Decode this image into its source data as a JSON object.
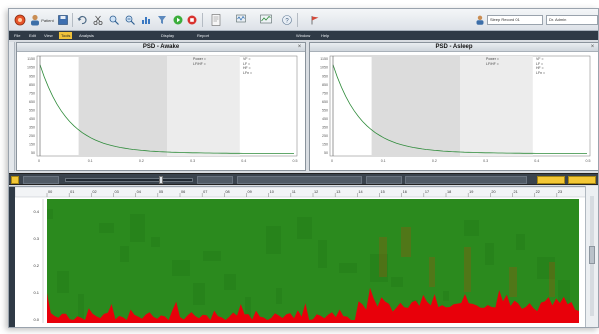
{
  "toolbar": {
    "buttons": [
      {
        "name": "record-icon",
        "label": ""
      },
      {
        "name": "user-icon",
        "label": "Patient"
      },
      {
        "name": "save-icon",
        "label": ""
      },
      {
        "name": "undo-icon",
        "label": ""
      },
      {
        "name": "cut-icon",
        "label": ""
      },
      {
        "name": "zoom-in-icon",
        "label": ""
      },
      {
        "name": "zoom-out-icon",
        "label": ""
      },
      {
        "name": "play-icon",
        "label": ""
      },
      {
        "name": "stop-icon",
        "label": ""
      },
      {
        "name": "report-icon",
        "label": ""
      },
      {
        "name": "montage-icon",
        "label": ""
      },
      {
        "name": "analysis-icon",
        "label": ""
      },
      {
        "name": "help-icon",
        "label": ""
      }
    ],
    "patient_field": "Sleep Record 01",
    "user_field": "Dr. Admin"
  },
  "menu": {
    "items": [
      "File",
      "Edit",
      "View",
      "Tools",
      "Analysis",
      "Display",
      "Report",
      "Window",
      "Help"
    ],
    "active_index": 3
  },
  "psd_panels": [
    {
      "title": "PSD - Awake",
      "stats_left": [
        "Power =",
        "LF/HF ="
      ],
      "stats_right": [
        "VF =",
        "LF =",
        "HF =",
        "LFn ="
      ],
      "colors": {
        "line": "#2e8b3a",
        "bg_band": "#dcdcdc"
      }
    },
    {
      "title": "PSD - Asleep",
      "stats_left": [
        "Power =",
        "LF/HF ="
      ],
      "stats_right": [
        "VF =",
        "LF =",
        "HF =",
        "LFn ="
      ],
      "colors": {
        "line": "#2e8b3a",
        "bg_band": "#dcdcdc"
      }
    }
  ],
  "psd_ticks_y": [
    "1150",
    "1050",
    "950",
    "850",
    "750",
    "650",
    "550",
    "450",
    "350",
    "250",
    "150",
    "50"
  ],
  "psd_ticks_x": [
    "0",
    "0.1",
    "0.2",
    "0.3",
    "0.4",
    "0.5"
  ],
  "control": {
    "field1": "",
    "button1": "",
    "button2": ""
  },
  "hypno": {
    "time_labels": [
      "00",
      "01",
      "02",
      "03",
      "04",
      "05",
      "06",
      "07",
      "08",
      "09",
      "10",
      "11",
      "12",
      "13",
      "14",
      "15",
      "16",
      "17",
      "18",
      "19",
      "20",
      "21",
      "22",
      "23"
    ],
    "y_labels": [
      "0.4",
      "0.3",
      "0.2",
      "0.1",
      "0.0"
    ],
    "colors": {
      "high": "#2b8a1e",
      "low": "#e8000a"
    }
  }
}
